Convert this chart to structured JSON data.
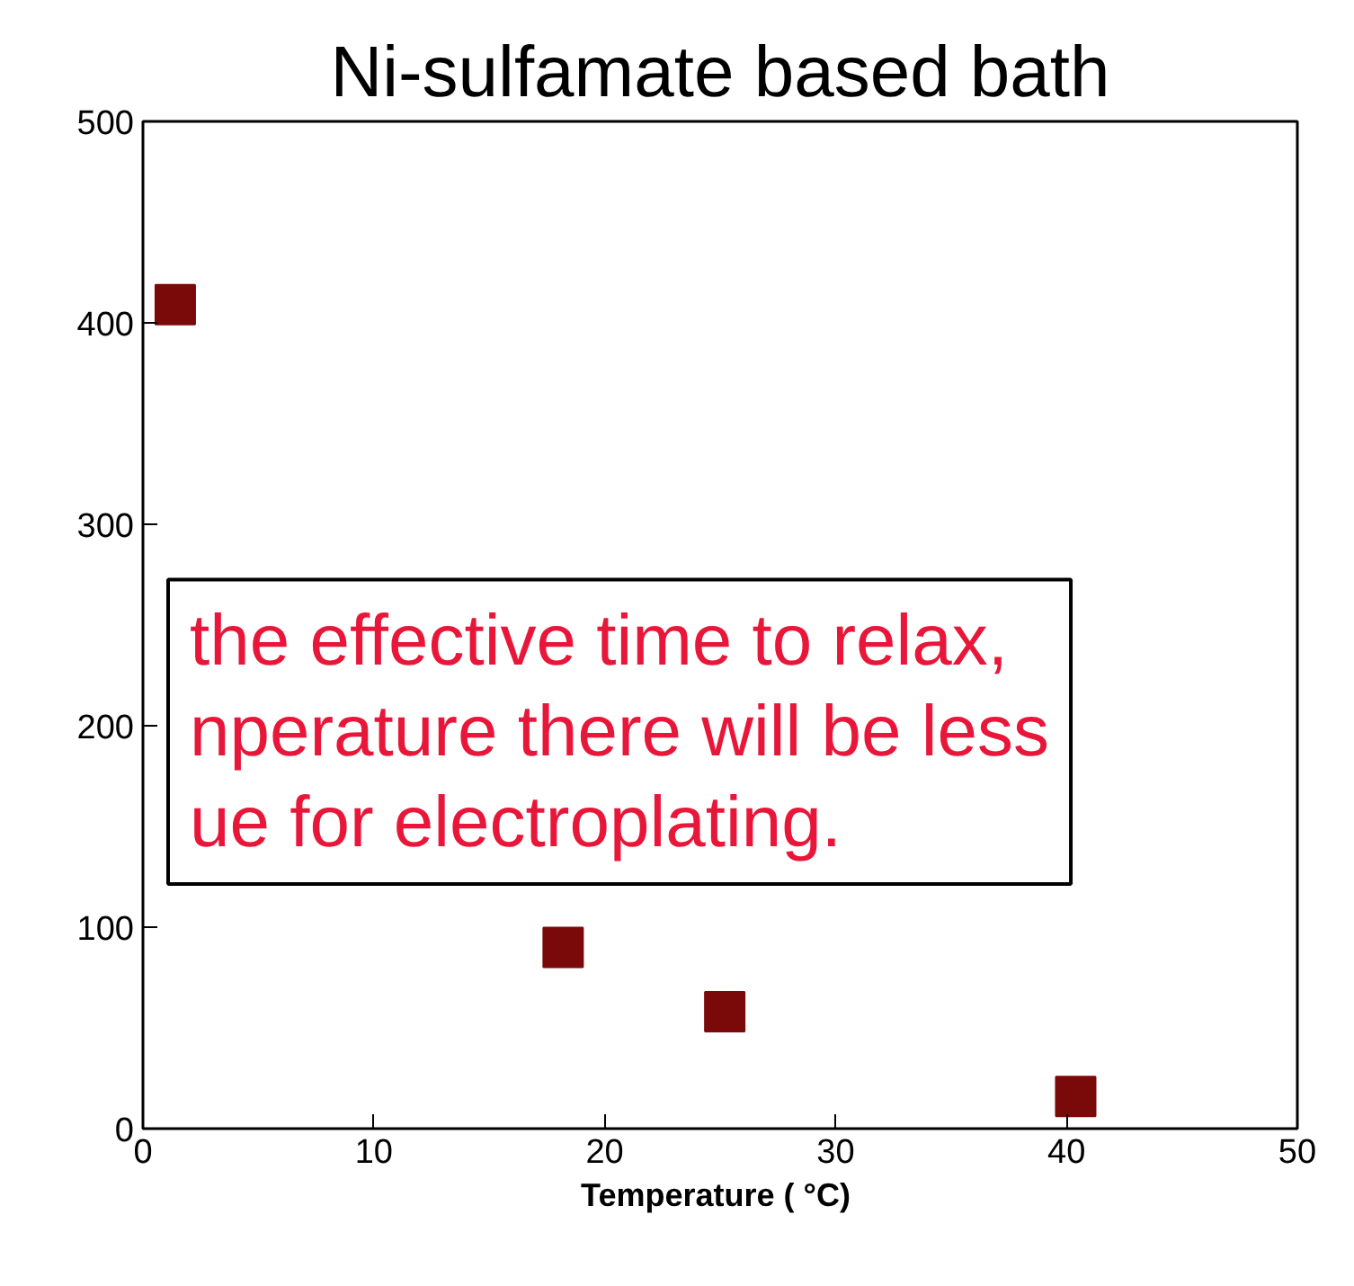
{
  "chart_data": {
    "type": "scatter",
    "title": "Ni-sulfamate based bath",
    "xlabel": "Temperature  ( °C)",
    "x": [
      1.4,
      18.2,
      25.2,
      40.4
    ],
    "series": [
      {
        "color": "#7a0a0a",
        "values": [
          409,
          90,
          58,
          16
        ]
      }
    ],
    "xlim": [
      0,
      50
    ],
    "xticks": [
      0,
      10,
      20,
      30,
      40,
      50
    ],
    "ylim": [
      0,
      500
    ],
    "yticks": [
      0,
      100,
      200,
      300,
      400,
      500
    ],
    "marker": "square",
    "grid": false,
    "annotations": [
      "the effective time to relax,\nnperature there will be less\nue for electroplating."
    ]
  }
}
